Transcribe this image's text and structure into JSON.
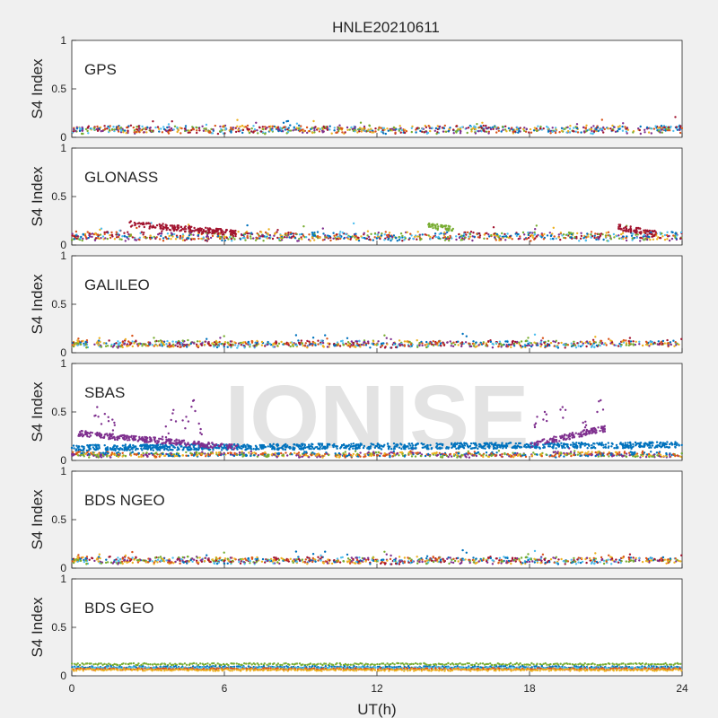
{
  "chart_data": {
    "type": "scatter",
    "title": "HNLE20210611",
    "xlabel": "UT(h)",
    "ylabel": "S4 Index",
    "xlim": [
      0,
      24
    ],
    "ylim": [
      0,
      1
    ],
    "xticks": [
      "0",
      "6",
      "12",
      "18",
      "24"
    ],
    "yticks": [
      "0",
      "0.5",
      "1"
    ],
    "watermark": "IONISE",
    "grid": false,
    "colors": [
      "#0072bd",
      "#d95319",
      "#edb120",
      "#7e2f8e",
      "#77ac30",
      "#4dbeee",
      "#a2142f"
    ],
    "panels": [
      {
        "label": "GPS",
        "baseline": 0.08,
        "spread": 0.06,
        "series": 7,
        "trends": []
      },
      {
        "label": "GLONASS",
        "baseline": 0.09,
        "spread": 0.07,
        "series": 7,
        "trends": [
          {
            "series": 6,
            "x0": 2.2,
            "x1": 6.5,
            "y0": 0.22,
            "y1": 0.12
          },
          {
            "series": 4,
            "x0": 14.0,
            "x1": 15.0,
            "y0": 0.2,
            "y1": 0.16
          },
          {
            "series": 6,
            "x0": 21.5,
            "x1": 23.0,
            "y0": 0.18,
            "y1": 0.12
          }
        ]
      },
      {
        "label": "GALILEO",
        "baseline": 0.09,
        "spread": 0.05,
        "series": 7,
        "trends": []
      },
      {
        "label": "SBAS",
        "baseline": 0.06,
        "spread": 0.03,
        "series": 5,
        "trends": [
          {
            "series": 0,
            "x0": 0.0,
            "x1": 24.0,
            "y0": 0.13,
            "y1": 0.16
          },
          {
            "series": 3,
            "x0": 0.2,
            "x1": 6.5,
            "y0": 0.28,
            "y1": 0.13
          },
          {
            "series": 3,
            "x0": 18.0,
            "x1": 21.0,
            "y0": 0.16,
            "y1": 0.33
          }
        ],
        "spikes": [
          {
            "x": 1.0,
            "y": 0.55
          },
          {
            "x": 1.3,
            "y": 0.48
          },
          {
            "x": 1.6,
            "y": 0.42
          },
          {
            "x": 3.7,
            "y": 0.35
          },
          {
            "x": 4.0,
            "y": 0.52
          },
          {
            "x": 4.5,
            "y": 0.45
          },
          {
            "x": 4.8,
            "y": 0.62
          },
          {
            "x": 5.0,
            "y": 0.38
          },
          {
            "x": 18.3,
            "y": 0.45
          },
          {
            "x": 18.6,
            "y": 0.5
          },
          {
            "x": 19.3,
            "y": 0.55
          },
          {
            "x": 20.2,
            "y": 0.4
          },
          {
            "x": 20.8,
            "y": 0.62
          }
        ]
      },
      {
        "label": "BDS NGEO",
        "baseline": 0.08,
        "spread": 0.05,
        "series": 7,
        "trends": []
      },
      {
        "label": "BDS GEO",
        "baseline": 0.09,
        "spread": 0.02,
        "series": 5,
        "bands": [
          {
            "series": 4,
            "y": 0.12
          },
          {
            "series": 0,
            "y": 0.09
          },
          {
            "series": 5,
            "y": 0.08
          },
          {
            "series": 1,
            "y": 0.07
          },
          {
            "series": 2,
            "y": 0.06
          }
        ]
      }
    ]
  }
}
